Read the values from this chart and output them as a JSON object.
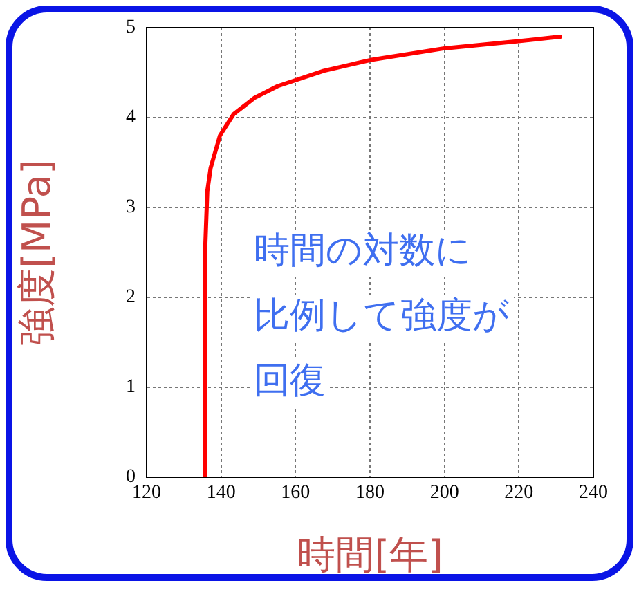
{
  "chart_data": {
    "type": "line",
    "xlabel": "時間[年]",
    "ylabel": "強度[MPa]",
    "annotations": [
      "時間の対数に",
      "比例して強度が",
      "回復"
    ],
    "series": [
      {
        "color": "#ff0000",
        "x": [
          135.7,
          135.7,
          136.3,
          137.2,
          139.7,
          143.4,
          149,
          155.2,
          167.6,
          180.1,
          200,
          219.9,
          231.1
        ],
        "values": [
          0,
          2.5,
          3.18,
          3.44,
          3.8,
          4.04,
          4.22,
          4.35,
          4.52,
          4.64,
          4.77,
          4.85,
          4.9
        ]
      }
    ],
    "xlim": [
      120,
      240
    ],
    "xticks": [
      120,
      140,
      160,
      180,
      200,
      220,
      240
    ],
    "ylim": [
      0,
      5
    ],
    "yticks": [
      0,
      1,
      2,
      3,
      4,
      5
    ],
    "grid": true,
    "legend": false,
    "marker": "none",
    "line_style": "solid"
  }
}
